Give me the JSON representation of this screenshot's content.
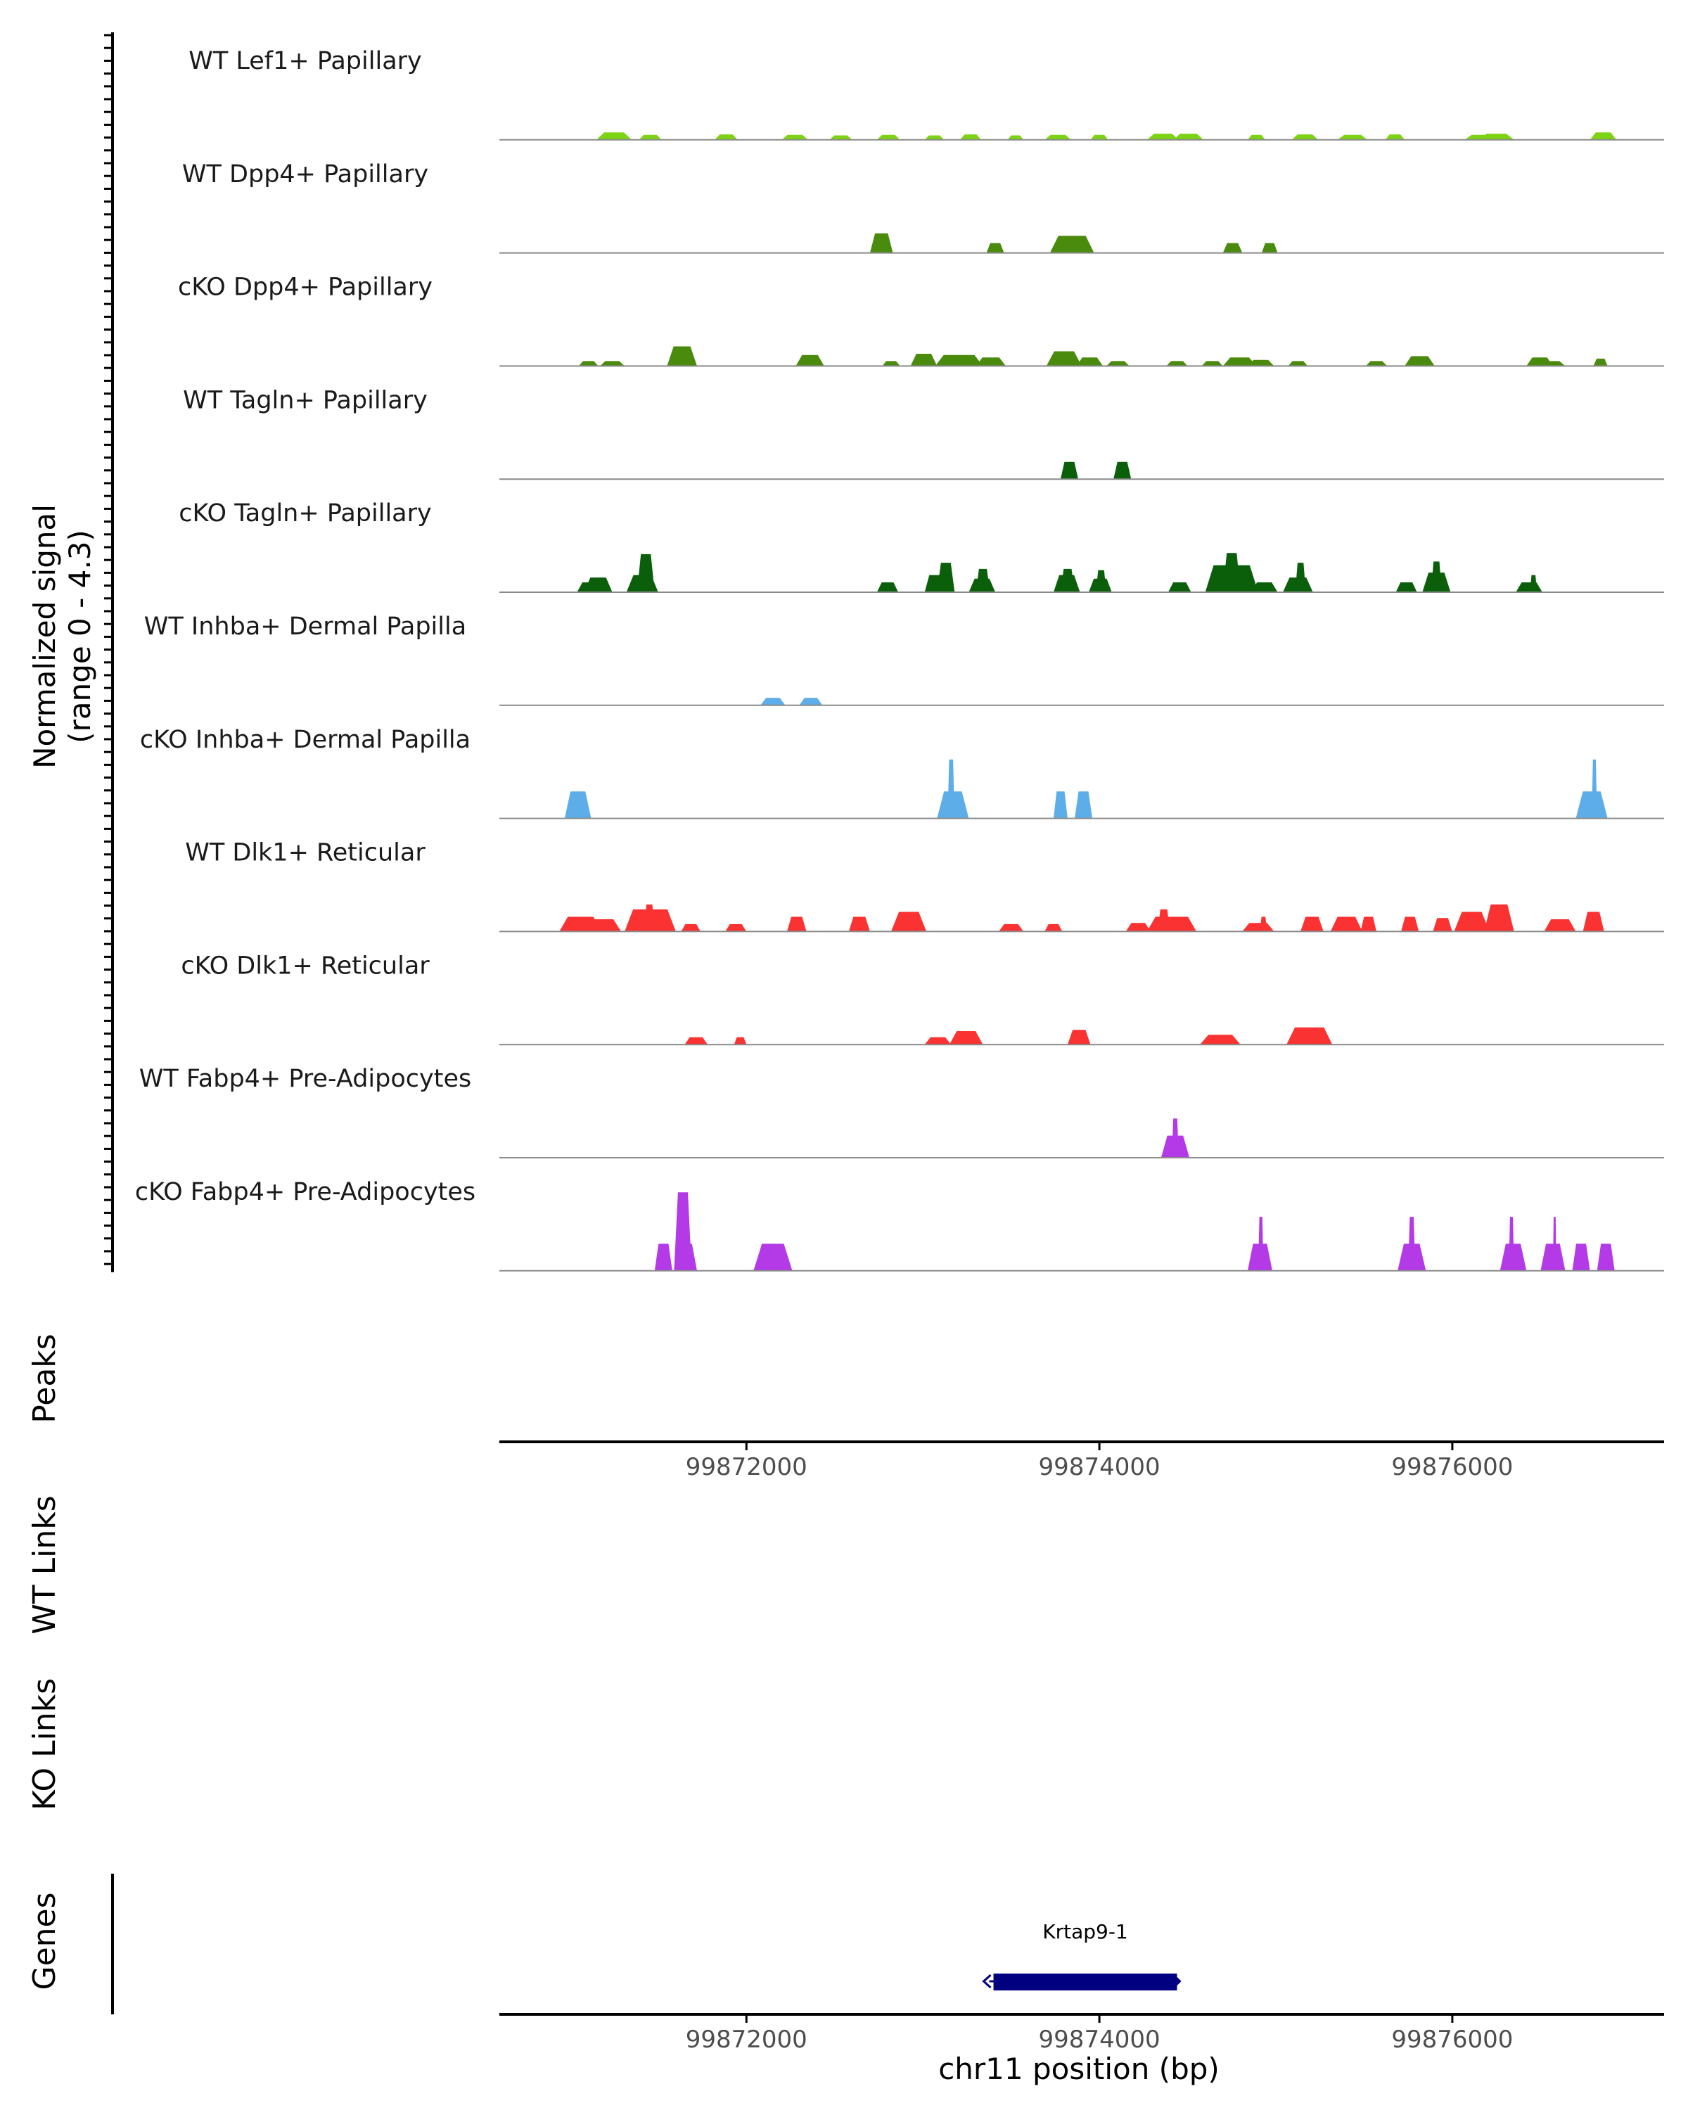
{
  "chart_data": {
    "type": "area",
    "title": "",
    "ylabel": "Normalized signal\n(range 0 - 4.3)",
    "ylim": [
      0,
      4.3
    ],
    "xlabel": "chr11 position (bp)",
    "xlim": [
      99870600,
      99877200
    ],
    "x_ticks": [
      99872000,
      99874000,
      99876000
    ],
    "x_tick_labels": [
      "99872000",
      "99874000",
      "99876000"
    ],
    "tracks": [
      {
        "name": "WT Lef1+ Papillary",
        "color": "#7cd313",
        "peaks": [
          [
            99871150,
            99871350,
            0.3
          ],
          [
            99871390,
            99871520,
            0.2
          ],
          [
            99871820,
            99871950,
            0.22
          ],
          [
            99872200,
            99872350,
            0.2
          ],
          [
            99872470,
            99872600,
            0.18
          ],
          [
            99872740,
            99872870,
            0.2
          ],
          [
            99873010,
            99873120,
            0.18
          ],
          [
            99873210,
            99873330,
            0.22
          ],
          [
            99873480,
            99873570,
            0.18
          ],
          [
            99873690,
            99873840,
            0.2
          ],
          [
            99873950,
            99874050,
            0.2
          ],
          [
            99874270,
            99874450,
            0.25
          ],
          [
            99874420,
            99874590,
            0.25
          ],
          [
            99874840,
            99874940,
            0.2
          ],
          [
            99875090,
            99875240,
            0.22
          ],
          [
            99875350,
            99875520,
            0.2
          ],
          [
            99875620,
            99875730,
            0.22
          ],
          [
            99876070,
            99876250,
            0.2
          ],
          [
            99876150,
            99876350,
            0.25
          ],
          [
            99876780,
            99876930,
            0.3
          ]
        ]
      },
      {
        "name": "WT Dpp4+ Papillary",
        "color": "#4a8a0c",
        "peaks": [
          [
            99872700,
            99872830,
            0.8
          ],
          [
            99873360,
            99873460,
            0.4
          ],
          [
            99873720,
            99873970,
            0.7
          ],
          [
            99874700,
            99874810,
            0.4
          ],
          [
            99874920,
            99875010,
            0.4
          ]
        ]
      },
      {
        "name": "cKO Dpp4+ Papillary",
        "color": "#4a8a0c",
        "peaks": [
          [
            99871050,
            99871160,
            0.2
          ],
          [
            99871170,
            99871310,
            0.2
          ],
          [
            99871550,
            99871720,
            0.8
          ],
          [
            99872280,
            99872440,
            0.45
          ],
          [
            99872770,
            99872870,
            0.2
          ],
          [
            99872930,
            99873080,
            0.5
          ],
          [
            99873070,
            99873340,
            0.45
          ],
          [
            99873300,
            99873470,
            0.35
          ],
          [
            99873700,
            99873900,
            0.6
          ],
          [
            99873870,
            99874020,
            0.35
          ],
          [
            99874040,
            99874170,
            0.2
          ],
          [
            99874380,
            99874500,
            0.2
          ],
          [
            99874580,
            99874700,
            0.2
          ],
          [
            99874700,
            99874890,
            0.35
          ],
          [
            99874840,
            99874990,
            0.25
          ],
          [
            99875070,
            99875180,
            0.2
          ],
          [
            99875510,
            99875630,
            0.2
          ],
          [
            99875730,
            99875900,
            0.4
          ],
          [
            99876420,
            99876570,
            0.35
          ],
          [
            99876490,
            99876640,
            0.2
          ],
          [
            99876800,
            99876880,
            0.3
          ]
        ]
      },
      {
        "name": "WT Tagln+ Papillary",
        "color": "#0b5f0b",
        "peaks": [
          [
            99873780,
            99873880,
            0.7
          ],
          [
            99874080,
            99874180,
            0.7
          ]
        ]
      },
      {
        "name": "cKO Tagln+ Papillary",
        "color": "#0b5f0b",
        "peaks": [
          [
            99871040,
            99871180,
            0.4
          ],
          [
            99871080,
            99871240,
            0.6
          ],
          [
            99871320,
            99871500,
            0.7
          ],
          [
            99871380,
            99871480,
            1.55
          ],
          [
            99872740,
            99872860,
            0.4
          ],
          [
            99873010,
            99873130,
            0.7
          ],
          [
            99873080,
            99873180,
            1.2
          ],
          [
            99873260,
            99873410,
            0.55
          ],
          [
            99873300,
            99873380,
            0.95
          ],
          [
            99873740,
            99873890,
            0.7
          ],
          [
            99873780,
            99873860,
            0.95
          ],
          [
            99873940,
            99874070,
            0.55
          ],
          [
            99873980,
            99874040,
            0.9
          ],
          [
            99874390,
            99874520,
            0.4
          ],
          [
            99874600,
            99874900,
            1.1
          ],
          [
            99874700,
            99874800,
            1.6
          ],
          [
            99874860,
            99875010,
            0.4
          ],
          [
            99875040,
            99875210,
            0.6
          ],
          [
            99875110,
            99875170,
            1.2
          ],
          [
            99875680,
            99875800,
            0.4
          ],
          [
            99875830,
            99875990,
            0.8
          ],
          [
            99875880,
            99875940,
            1.25
          ],
          [
            99876360,
            99876510,
            0.4
          ],
          [
            99876440,
            99876480,
            0.7
          ]
        ]
      },
      {
        "name": "WT Inhba+ Dermal Papilla",
        "color": "#5daee8",
        "peaks": [
          [
            99872080,
            99872220,
            0.3
          ],
          [
            99872300,
            99872430,
            0.3
          ]
        ]
      },
      {
        "name": "cKO Inhba+ Dermal Papilla",
        "color": "#5daee8",
        "peaks": [
          [
            99870970,
            99871120,
            1.1
          ],
          [
            99873080,
            99873260,
            1.1
          ],
          [
            99873140,
            99873180,
            2.4
          ],
          [
            99873740,
            99873820,
            1.1
          ],
          [
            99873860,
            99873960,
            1.1
          ],
          [
            99876700,
            99876880,
            1.1
          ],
          [
            99876790,
            99876820,
            2.4
          ]
        ]
      },
      {
        "name": "WT Dlk1+ Reticular",
        "color": "#fa3232",
        "peaks": [
          [
            99870940,
            99871180,
            0.6
          ],
          [
            99871090,
            99871290,
            0.5
          ],
          [
            99871310,
            99871600,
            0.9
          ],
          [
            99871420,
            99871480,
            1.1
          ],
          [
            99871630,
            99871740,
            0.3
          ],
          [
            99871880,
            99872000,
            0.3
          ],
          [
            99872230,
            99872340,
            0.6
          ],
          [
            99872580,
            99872700,
            0.6
          ],
          [
            99872820,
            99873020,
            0.8
          ],
          [
            99873430,
            99873570,
            0.3
          ],
          [
            99873690,
            99873790,
            0.3
          ],
          [
            99874150,
            99874290,
            0.35
          ],
          [
            99874270,
            99874550,
            0.6
          ],
          [
            99874330,
            99874400,
            0.9
          ],
          [
            99874810,
            99874990,
            0.35
          ],
          [
            99874910,
            99874950,
            0.6
          ],
          [
            99875140,
            99875270,
            0.6
          ],
          [
            99875310,
            99875490,
            0.6
          ],
          [
            99875480,
            99875570,
            0.6
          ],
          [
            99875710,
            99875810,
            0.6
          ],
          [
            99875890,
            99876000,
            0.55
          ],
          [
            99876010,
            99876210,
            0.8
          ],
          [
            99876180,
            99876350,
            1.1
          ],
          [
            99876520,
            99876700,
            0.5
          ],
          [
            99876740,
            99876860,
            0.8
          ]
        ]
      },
      {
        "name": "cKO Dlk1+ Reticular",
        "color": "#fa3232",
        "peaks": [
          [
            99871650,
            99871780,
            0.3
          ],
          [
            99871930,
            99872000,
            0.3
          ],
          [
            99873010,
            99873160,
            0.3
          ],
          [
            99873150,
            99873340,
            0.55
          ],
          [
            99873820,
            99873950,
            0.6
          ],
          [
            99874570,
            99874800,
            0.4
          ],
          [
            99875060,
            99875320,
            0.7
          ]
        ]
      },
      {
        "name": "WT Fabp4+ Pre-Adipocytes",
        "color": "#b43ae8",
        "peaks": [
          [
            99874350,
            99874510,
            0.9
          ],
          [
            99874410,
            99874450,
            1.6
          ]
        ]
      },
      {
        "name": "cKO Fabp4+ Pre-Adipocytes",
        "color": "#b43ae8",
        "peaks": [
          [
            99871480,
            99871580,
            1.1
          ],
          [
            99871590,
            99871720,
            1.1
          ],
          [
            99871590,
            99871690,
            3.2
          ],
          [
            99872040,
            99872260,
            1.1
          ],
          [
            99874840,
            99874980,
            1.1
          ],
          [
            99874900,
            99874930,
            2.2
          ],
          [
            99875690,
            99875850,
            1.1
          ],
          [
            99875750,
            99875790,
            2.2
          ],
          [
            99876270,
            99876420,
            1.1
          ],
          [
            99876320,
            99876350,
            2.2
          ],
          [
            99876500,
            99876640,
            1.1
          ],
          [
            99876570,
            99876590,
            2.2
          ],
          [
            99876680,
            99876780,
            1.1
          ],
          [
            99876820,
            99876920,
            1.1
          ]
        ]
      }
    ],
    "panel_labels": [
      "Peaks",
      "WT Links",
      "KO Links",
      "Genes"
    ],
    "genes": [
      {
        "name": "Krtap9-1",
        "start": 99873400,
        "end": 99874440,
        "strand": "-"
      }
    ]
  }
}
